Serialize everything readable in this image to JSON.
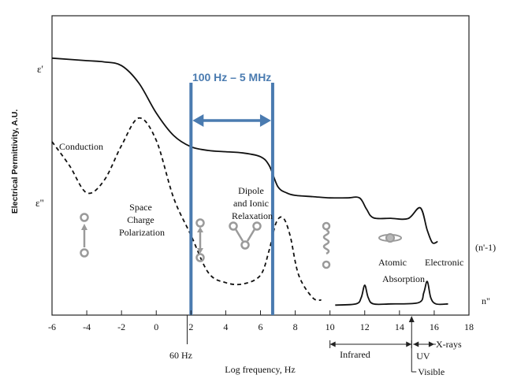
{
  "chart_data": {
    "type": "line",
    "xlabel": "Log frequency, Hz",
    "ylabel": "Electrical Permittivity, A.U.",
    "xlim": [
      -6,
      18
    ],
    "x_ticks": [
      "-6",
      "-4",
      "-2",
      "0",
      "2",
      "4",
      "6",
      "8",
      "10",
      "12",
      "14",
      "16",
      "18"
    ],
    "y_markers": [
      "ε'",
      "ε\""
    ],
    "right_labels": [
      "(n'-1)",
      "n\""
    ],
    "highlight": {
      "label": "100 Hz – 5 MHz",
      "x_range": [
        2,
        6.7
      ],
      "color": "#4a7bb0"
    },
    "markers_below_axis": [
      {
        "label": "60 Hz",
        "x": 1.78
      }
    ],
    "mechanisms": [
      {
        "label_lines": [
          "Conduction"
        ]
      },
      {
        "label_lines": [
          "Space",
          "Charge",
          "Polarization"
        ]
      },
      {
        "label_lines": [
          "Dipole",
          "and Ionic",
          "Relaxation"
        ]
      },
      {
        "label_lines": [
          "Atomic"
        ]
      },
      {
        "label_lines": [
          "Electronic"
        ]
      },
      {
        "label_lines": [
          "Absorption"
        ]
      }
    ],
    "bands": [
      {
        "label": "Infrared",
        "x_range": [
          10,
          14.7
        ]
      },
      {
        "label": "UV",
        "x_range": [
          14.7,
          16
        ]
      },
      {
        "label": "X-rays",
        "x_range": [
          16,
          18
        ]
      },
      {
        "label": "Visible",
        "x": 14.7
      }
    ],
    "series": [
      {
        "name": "ε'",
        "style": "solid",
        "x": [
          -6,
          -4,
          -3,
          -2,
          -1,
          0,
          1,
          2,
          3,
          4,
          5,
          6,
          6.5,
          7,
          7.5,
          8,
          9,
          10,
          11,
          11.7,
          12.1,
          12.5,
          13.5,
          14.5,
          15.2,
          15.6,
          15.9,
          16.2
        ],
        "y": [
          10.3,
          10.2,
          10.15,
          10.0,
          9.3,
          8.1,
          7.2,
          6.75,
          6.6,
          6.55,
          6.5,
          6.35,
          6.0,
          5.15,
          4.9,
          4.8,
          4.75,
          4.7,
          4.7,
          4.7,
          4.25,
          3.9,
          3.88,
          3.87,
          4.3,
          3.4,
          2.9,
          2.95
        ]
      },
      {
        "name": "ε\"",
        "style": "dashed",
        "x": [
          -6,
          -5,
          -4,
          -3,
          -2,
          -1,
          0,
          1,
          2,
          3,
          4,
          5,
          6,
          6.5,
          6.9,
          7.3,
          7.7,
          8.2,
          9,
          9.5
        ],
        "y": [
          6.95,
          6.0,
          4.9,
          5.4,
          6.8,
          7.9,
          7.0,
          4.7,
          3.2,
          1.7,
          1.3,
          1.25,
          1.6,
          2.6,
          3.7,
          3.9,
          3.2,
          1.6,
          0.7,
          0.6
        ]
      },
      {
        "name": "n\"",
        "style": "solid",
        "x": [
          10.3,
          11.5,
          11.8,
          12.0,
          12.2,
          12.5,
          13.5,
          15.1,
          15.4,
          15.6,
          15.8,
          16.1,
          16.8
        ],
        "y": [
          0.4,
          0.45,
          0.7,
          1.2,
          0.7,
          0.45,
          0.45,
          0.5,
          0.9,
          1.35,
          0.7,
          0.45,
          0.45
        ]
      }
    ],
    "grid": false,
    "legend": "none"
  }
}
